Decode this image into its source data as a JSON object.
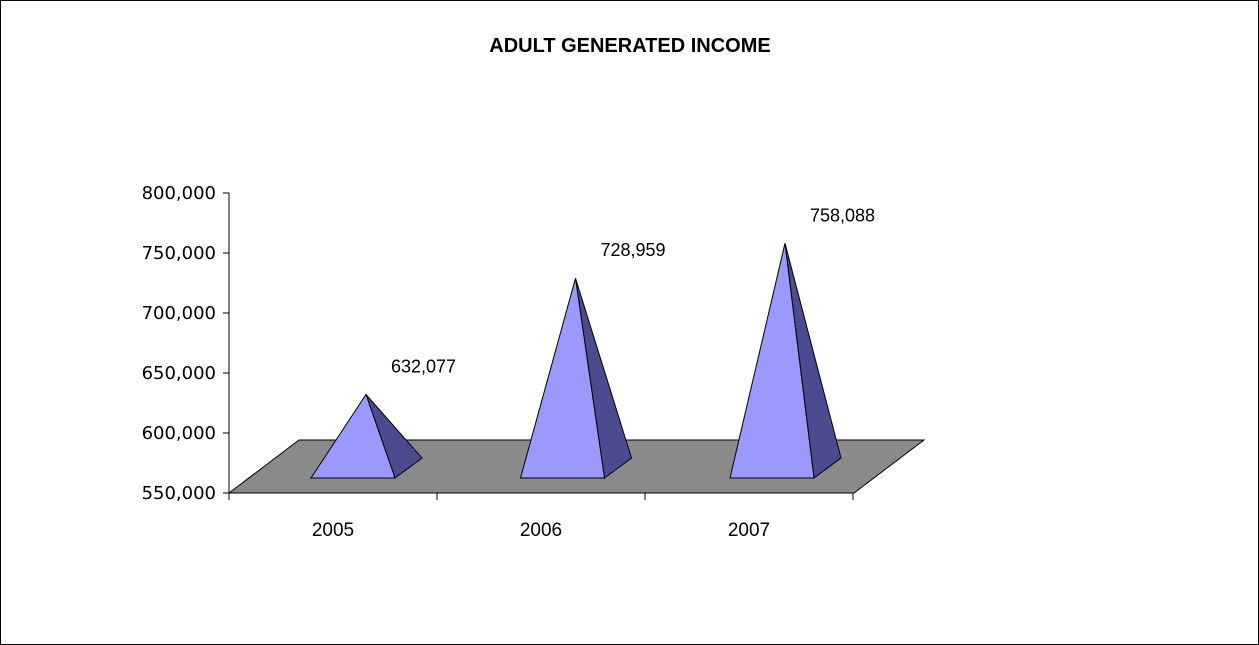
{
  "chart_data": {
    "type": "bar",
    "style": "3d-pyramid",
    "title": "ADULT GENERATED INCOME",
    "xlabel": "",
    "ylabel": "",
    "categories": [
      "2005",
      "2006",
      "2007"
    ],
    "values": [
      632077,
      728959,
      758088
    ],
    "data_labels": [
      "632,077",
      "728,959",
      "758,088"
    ],
    "ylim": [
      550000,
      800000
    ],
    "yticks": [
      550000,
      600000,
      650000,
      700000,
      750000,
      800000
    ],
    "ytick_labels": [
      "550,000",
      "600,000",
      "650,000",
      "700,000",
      "750,000",
      "800,000"
    ],
    "grid": false,
    "legend": "none",
    "colors": {
      "pyramid_front": "#9999ff",
      "pyramid_side": "#4b4b8f",
      "floor": "#8a8a8a",
      "outline": "#000000"
    }
  }
}
